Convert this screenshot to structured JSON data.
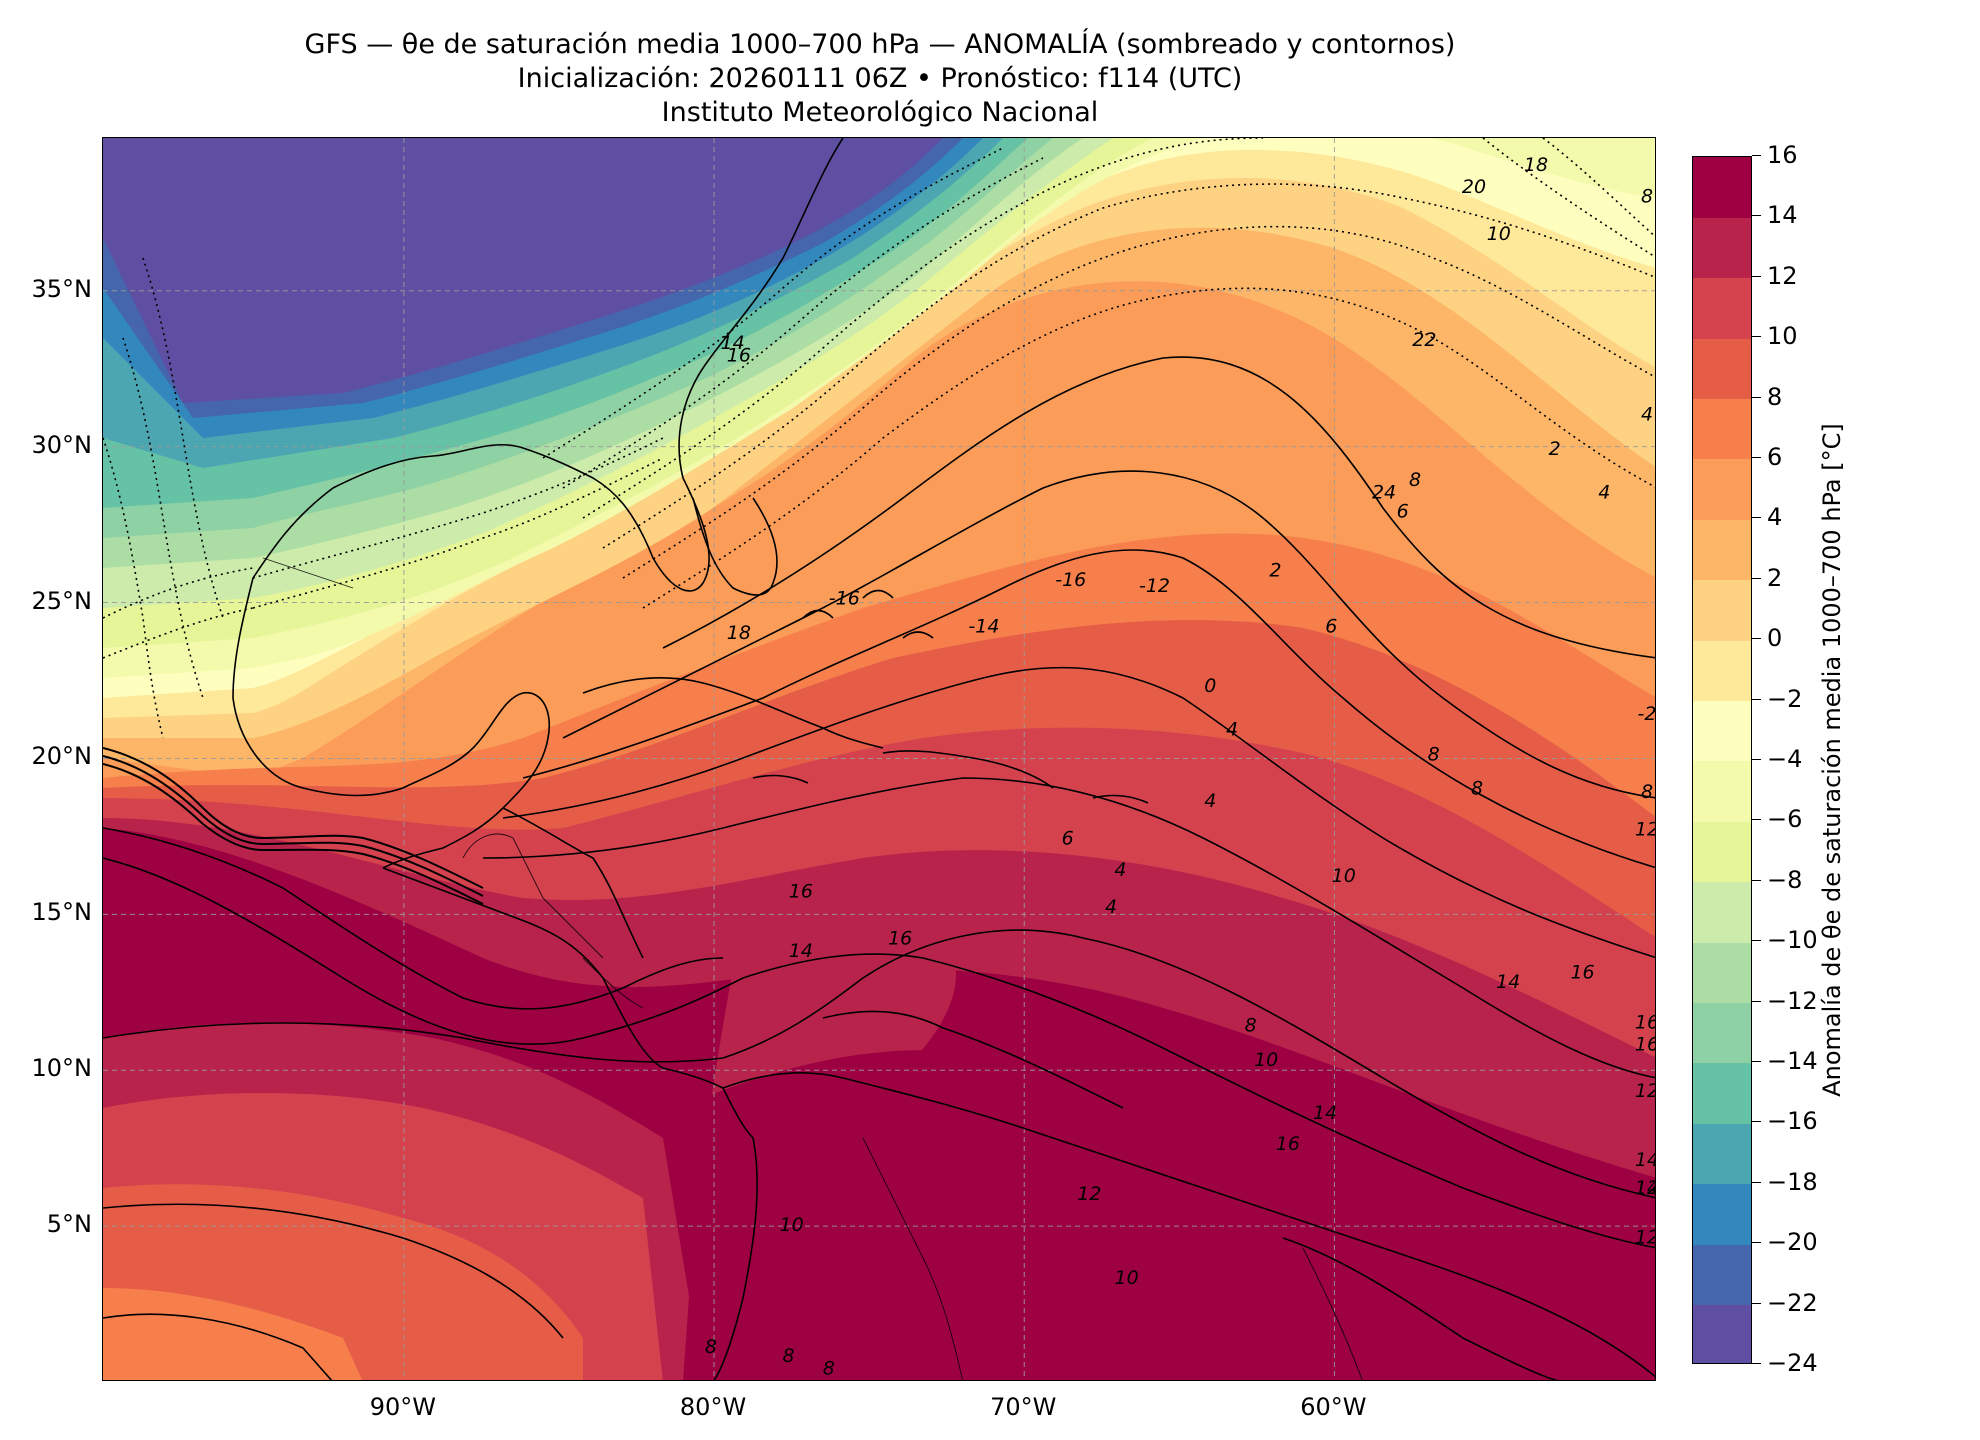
{
  "title": {
    "line1": "GFS — θe de saturación media 1000–700 hPa — ANOMALÍA (sombreado y contornos)",
    "line2": "Inicialización: 20260111 06Z   •   Pronóstico: f114 (UTC)",
    "line3": "Instituto Meteorológico Nacional"
  },
  "map": {
    "lat_ticks": [
      "35°N",
      "30°N",
      "25°N",
      "20°N",
      "15°N",
      "10°N",
      "5°N"
    ],
    "lat_values": [
      35,
      30,
      25,
      20,
      15,
      10,
      5
    ],
    "lon_ticks": [
      "90°W",
      "80°W",
      "70°W",
      "60°W"
    ],
    "lon_values": [
      -90,
      -80,
      -70,
      -60
    ],
    "extent": {
      "lon_min": -99.7,
      "lon_max": -49.6,
      "lat_min": 0,
      "lat_max": 39.9
    },
    "gridlines": true,
    "gridline_style": "dashed gray",
    "coastlines": true,
    "country_borders": true
  },
  "contour_labels": [
    {
      "text": "18",
      "lon": -53.5,
      "lat": 38.9
    },
    {
      "text": "20",
      "lon": -55.5,
      "lat": 38.2
    },
    {
      "text": "10",
      "lon": -54.7,
      "lat": 36.7
    },
    {
      "text": "8",
      "lon": -49.5,
      "lat": 37.9
    },
    {
      "text": "22",
      "lon": -57.1,
      "lat": 33.3
    },
    {
      "text": "24",
      "lon": -58.4,
      "lat": 28.4
    },
    {
      "text": "8",
      "lon": -57.4,
      "lat": 28.8
    },
    {
      "text": "6",
      "lon": -57.8,
      "lat": 27.8
    },
    {
      "text": "2",
      "lon": -52.9,
      "lat": 29.8
    },
    {
      "text": "4",
      "lon": -51.3,
      "lat": 28.4
    },
    {
      "text": "4",
      "lon": -46.7,
      "lat": 30.9
    },
    {
      "text": "-16",
      "lon": -68.5,
      "lat": 25.6
    },
    {
      "text": "-12",
      "lon": -65.8,
      "lat": 25.4
    },
    {
      "text": "-14",
      "lon": -71.3,
      "lat": 24.1
    },
    {
      "text": "-16",
      "lon": -75.8,
      "lat": 25.0
    },
    {
      "text": "2",
      "lon": -61.9,
      "lat": 25.9
    },
    {
      "text": "6",
      "lon": -60.1,
      "lat": 24.1
    },
    {
      "text": "0",
      "lon": -64.0,
      "lat": 22.2
    },
    {
      "text": "4",
      "lon": -63.3,
      "lat": 20.8
    },
    {
      "text": "8",
      "lon": -56.8,
      "lat": 20.0
    },
    {
      "text": "8",
      "lon": -55.4,
      "lat": 18.9
    },
    {
      "text": "8",
      "lon": -41.2,
      "lat": 18.8
    },
    {
      "text": "12",
      "lon": -44.3,
      "lat": 17.6
    },
    {
      "text": "4",
      "lon": -64.0,
      "lat": 18.5
    },
    {
      "text": "4",
      "lon": -66.9,
      "lat": 16.3
    },
    {
      "text": "4",
      "lon": -67.2,
      "lat": 15.1
    },
    {
      "text": "6",
      "lon": -68.6,
      "lat": 17.3
    },
    {
      "text": "16",
      "lon": -77.2,
      "lat": 15.6
    },
    {
      "text": "14",
      "lon": -77.2,
      "lat": 13.7
    },
    {
      "text": "16",
      "lon": -74.0,
      "lat": 14.1
    },
    {
      "text": "10",
      "lon": -59.7,
      "lat": 16.1
    },
    {
      "text": "14",
      "lon": -54.4,
      "lat": 12.7
    },
    {
      "text": "16",
      "lon": -52.0,
      "lat": 13.0
    },
    {
      "text": "16",
      "lon": -48.6,
      "lat": 11.4
    },
    {
      "text": "16",
      "lon": -44.6,
      "lat": 10.7
    },
    {
      "text": "8",
      "lon": -62.7,
      "lat": 11.3
    },
    {
      "text": "10",
      "lon": -62.2,
      "lat": 10.2
    },
    {
      "text": "14",
      "lon": -60.3,
      "lat": 8.5
    },
    {
      "text": "16",
      "lon": -61.5,
      "lat": 7.5
    },
    {
      "text": "12",
      "lon": -67.9,
      "lat": 5.9
    },
    {
      "text": "10",
      "lon": -77.5,
      "lat": 4.9
    },
    {
      "text": "10",
      "lon": -66.7,
      "lat": 3.2
    },
    {
      "text": "8",
      "lon": -80.1,
      "lat": 1.0
    },
    {
      "text": "8",
      "lon": -77.6,
      "lat": 0.7
    },
    {
      "text": "8",
      "lon": -76.3,
      "lat": 0.3
    },
    {
      "text": "12",
      "lon": -34.5,
      "lat": 6.1
    },
    {
      "text": "12",
      "lon": -28.6,
      "lat": 4.5
    },
    {
      "text": "12",
      "lon": -21.7,
      "lat": 9.2
    },
    {
      "text": "14",
      "lon": -22.4,
      "lat": 7.0
    },
    {
      "text": "14",
      "lon": -19.4,
      "lat": 6.1
    },
    {
      "text": "-2",
      "lon": -24.5,
      "lat": 21.3
    },
    {
      "text": "14",
      "lon": -79.4,
      "lat": 33.2
    },
    {
      "text": "16",
      "lon": -79.2,
      "lat": 32.8
    },
    {
      "text": "18",
      "lon": -79.2,
      "lat": 23.9
    }
  ],
  "colorbar": {
    "label": "Anomalía de θe de saturación media 1000–700 hPa [°C]",
    "levels": [
      -24,
      -22,
      -20,
      -18,
      -16,
      -14,
      -12,
      -10,
      -8,
      -6,
      -4,
      -2,
      0,
      2,
      4,
      6,
      8,
      10,
      12,
      14,
      16
    ],
    "tick_labels": [
      "16",
      "14",
      "12",
      "10",
      "8",
      "6",
      "4",
      "2",
      "0",
      "−2",
      "−4",
      "−6",
      "−8",
      "−10",
      "−12",
      "−14",
      "−16",
      "−18",
      "−20",
      "−22",
      "−24"
    ],
    "colors": [
      "#5e4fa2",
      "#4565ac",
      "#3288bd",
      "#4ca6b1",
      "#66c2a5",
      "#8ed1a4",
      "#abdda4",
      "#cdebaa",
      "#e6f598",
      "#f3faac",
      "#fefebe",
      "#fee89a",
      "#fed283",
      "#fdb668",
      "#fb9d59",
      "#f67f4c",
      "#e65d47",
      "#d4424e",
      "#b8234c",
      "#9e0142"
    ]
  },
  "legend": {
    "colormap": "Spectral_r"
  }
}
